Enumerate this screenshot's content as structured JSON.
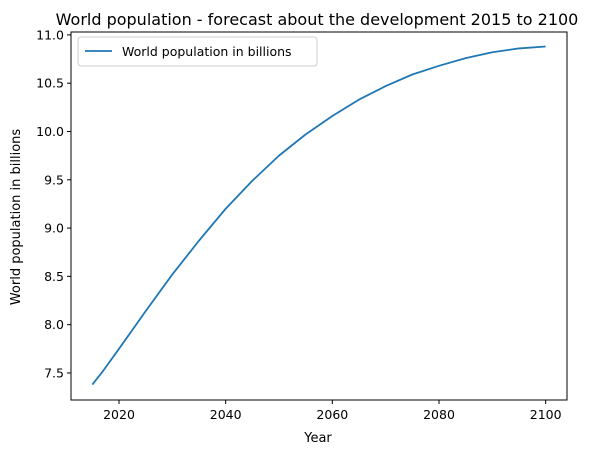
{
  "chart_data": {
    "type": "line",
    "title": "World population - forecast about the development 2015 to 2100",
    "xlabel": "Year",
    "ylabel": "World population in billions",
    "xlim": [
      2011,
      2104
    ],
    "ylim": [
      7.22,
      11.03
    ],
    "xticks": [
      2020,
      2040,
      2060,
      2080,
      2100
    ],
    "yticks": [
      7.5,
      8.0,
      8.5,
      9.0,
      9.5,
      10.0,
      10.5,
      11.0
    ],
    "ytick_labels": [
      "7.5",
      "8.0",
      "8.5",
      "9.0",
      "9.5",
      "10.0",
      "10.5",
      "11.0"
    ],
    "grid": false,
    "legend_position": "upper-left",
    "series": [
      {
        "name": "World population in billions",
        "color": "#1f77b4",
        "x": [
          2015,
          2017,
          2020,
          2025,
          2030,
          2035,
          2040,
          2045,
          2050,
          2055,
          2060,
          2065,
          2070,
          2075,
          2080,
          2085,
          2090,
          2095,
          2100
        ],
        "y": [
          7.38,
          7.52,
          7.75,
          8.14,
          8.52,
          8.87,
          9.2,
          9.49,
          9.75,
          9.97,
          10.16,
          10.33,
          10.47,
          10.59,
          10.68,
          10.76,
          10.82,
          10.86,
          10.88
        ]
      }
    ]
  }
}
